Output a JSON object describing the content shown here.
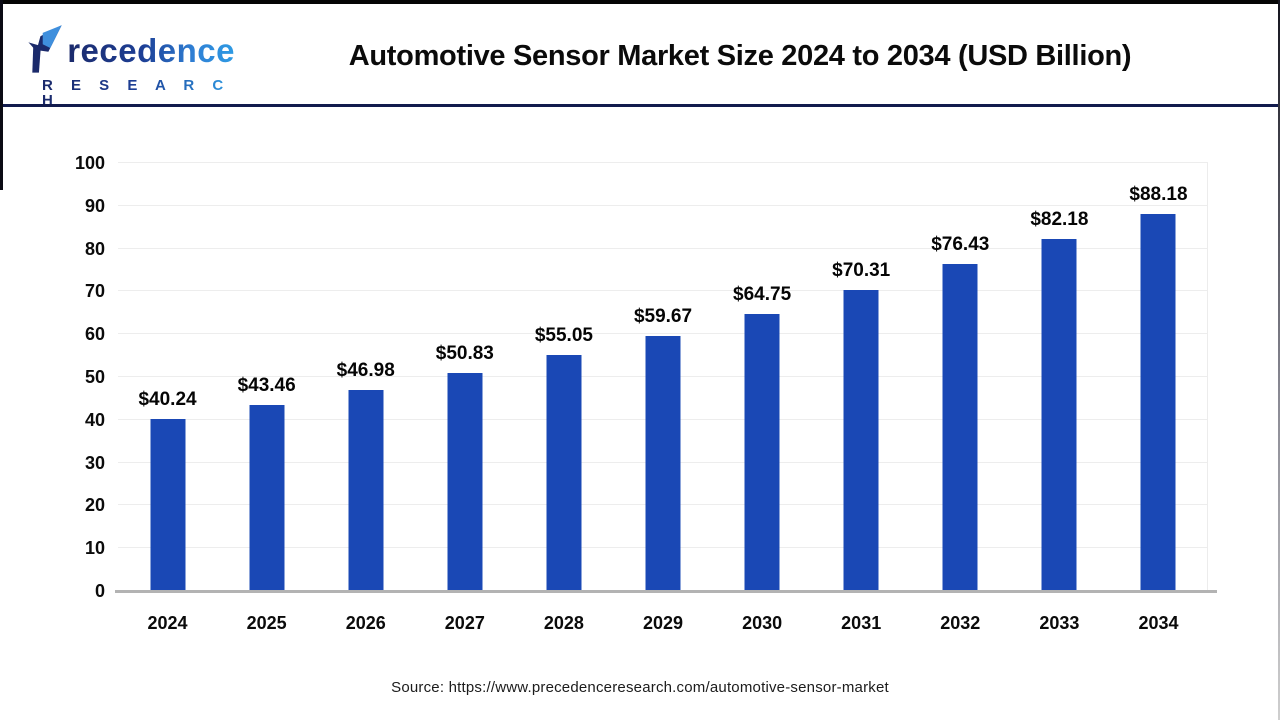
{
  "header": {
    "logo": {
      "brand_word_rest": "recedence",
      "brand_sub": "R E S E A R C H",
      "colors": {
        "navy": "#1b2a6b",
        "blue": "#2e9be4"
      }
    },
    "title": "Automotive Sensor Market Size 2024 to 2034 (USD Billion)"
  },
  "chart_data": {
    "type": "bar",
    "title": "Automotive Sensor Market Size 2024 to 2034 (USD Billion)",
    "categories": [
      "2024",
      "2025",
      "2026",
      "2027",
      "2028",
      "2029",
      "2030",
      "2031",
      "2032",
      "2033",
      "2034"
    ],
    "values": [
      40.24,
      43.46,
      46.98,
      50.83,
      55.05,
      59.67,
      64.75,
      70.31,
      76.43,
      82.18,
      88.18
    ],
    "bar_labels": [
      "$40.24",
      "$43.46",
      "$46.98",
      "$50.83",
      "$55.05",
      "$59.67",
      "$64.75",
      "$70.31",
      "$76.43",
      "$82.18",
      "$88.18"
    ],
    "xlabel": "",
    "ylabel": "",
    "ylim": [
      0,
      100
    ],
    "y_ticks": [
      "100",
      "90",
      "80",
      "70",
      "60",
      "50",
      "40",
      "30",
      "20",
      "10",
      "0"
    ],
    "grid": true,
    "legend": "none",
    "bar_color": "#1a48b5",
    "gridline_color": "#ededed",
    "axis_line_color": "#b3b3b3",
    "separator_color": "#121b4d"
  },
  "footer": {
    "source": "Source: https://www.precedenceresearch.com/automotive-sensor-market"
  }
}
